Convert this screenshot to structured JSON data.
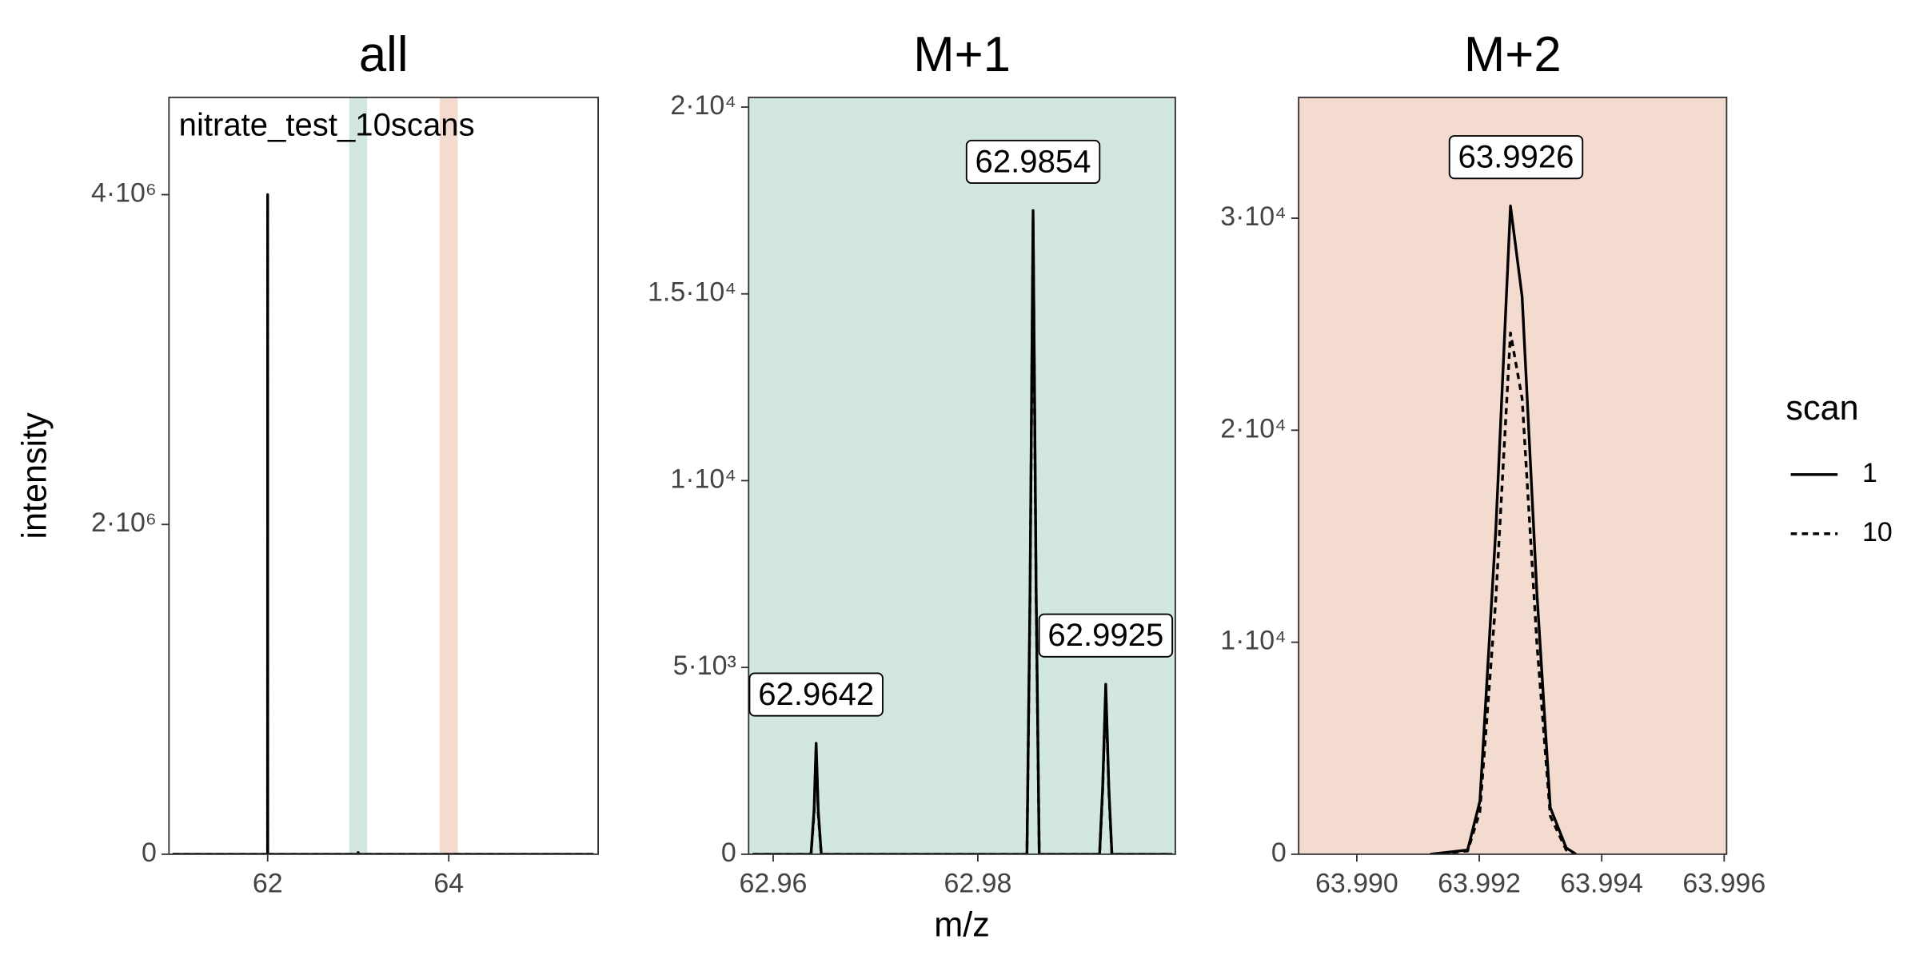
{
  "chart_data": [
    {
      "type": "line",
      "title": "all",
      "annotation": "nitrate_test_10scans",
      "xlim": [
        60.91,
        65.65
      ],
      "xticks": [
        62,
        64
      ],
      "ylim": [
        0,
        4590000
      ],
      "yticks": [
        0,
        {
          "value": 2000000,
          "label": "2·10⁶"
        },
        {
          "value": 4000000,
          "label": "4·10⁶"
        }
      ],
      "highlights": [
        {
          "xmin": 62.9,
          "xmax": 63.1,
          "color": "#d2e8df"
        },
        {
          "xmin": 63.9,
          "xmax": 64.1,
          "color": "#f4dbd0"
        }
      ],
      "series": [
        {
          "name": "1",
          "color": "#000000",
          "linestyle": "solid",
          "x": [
            60.95,
            61.999,
            62.0,
            62.001,
            62.999,
            63.0,
            63.001,
            65.6
          ],
          "values": [
            0,
            0,
            4000000,
            0,
            0,
            10000,
            0,
            0
          ]
        },
        {
          "name": "10",
          "color": "#000000",
          "linestyle": "dashed",
          "x": [
            60.95,
            61.999,
            62.0,
            62.001,
            62.999,
            63.0,
            63.001,
            65.6
          ],
          "values": [
            0,
            0,
            3950000,
            0,
            0,
            9000,
            0,
            0
          ]
        }
      ]
    },
    {
      "type": "line",
      "title": "M+1",
      "background": "#d2e8df",
      "xlim": [
        62.9576,
        62.9993
      ],
      "xticks": [
        62.96,
        62.98
      ],
      "ylim": [
        0,
        20260
      ],
      "yticks": [
        0,
        {
          "value": 5000,
          "label": "5·10³"
        },
        {
          "value": 10000,
          "label": "1·10⁴"
        },
        {
          "value": 15000,
          "label": "1.5·10⁴"
        },
        {
          "value": 20000,
          "label": "2·10⁴"
        }
      ],
      "peaks": [
        {
          "x": 62.9642,
          "y": 2970
        },
        {
          "x": 62.9854,
          "y": 17230
        },
        {
          "x": 62.9925,
          "y": 4550
        }
      ],
      "series": [
        {
          "name": "1",
          "color": "#000000",
          "linestyle": "solid",
          "x": [
            62.958,
            62.9637,
            62.964,
            62.9642,
            62.9644,
            62.9647,
            62.9848,
            62.9851,
            62.9854,
            62.9857,
            62.986,
            62.9919,
            62.9922,
            62.9925,
            62.9928,
            62.9931,
            62.999
          ],
          "values": [
            0,
            0,
            1200,
            2970,
            1200,
            0,
            0,
            7000,
            17230,
            7000,
            0,
            0,
            1800,
            4550,
            1800,
            0,
            0
          ]
        },
        {
          "name": "10",
          "color": "#000000",
          "linestyle": "dashed",
          "x": [
            62.958,
            62.9637,
            62.964,
            62.9642,
            62.9644,
            62.9647,
            62.9848,
            62.9851,
            62.9854,
            62.9857,
            62.986,
            62.9919,
            62.9922,
            62.9925,
            62.9928,
            62.9931,
            62.999
          ],
          "values": [
            0,
            0,
            1100,
            2900,
            1100,
            0,
            0,
            6800,
            16900,
            6800,
            0,
            0,
            1700,
            4450,
            1700,
            0,
            0
          ]
        }
      ]
    },
    {
      "type": "line",
      "title": "M+2",
      "background": "#f4dbd0",
      "xlim": [
        63.98905,
        63.99604
      ],
      "xticks": [
        {
          "value": 63.99,
          "label": "63.990"
        },
        63.992,
        63.994,
        63.996
      ],
      "ylim": [
        0,
        35700
      ],
      "yticks": [
        0,
        {
          "value": 10000,
          "label": "1·10⁴"
        },
        {
          "value": 20000,
          "label": "2·10⁴"
        },
        {
          "value": 30000,
          "label": "3·10⁴"
        }
      ],
      "peaks": [
        {
          "x": 63.9926,
          "y": 30580
        }
      ],
      "series": [
        {
          "name": "1",
          "color": "#000000",
          "linestyle": "solid",
          "x": [
            63.9912,
            63.99181,
            63.99201,
            63.99227,
            63.99251,
            63.9927,
            63.99294,
            63.99316,
            63.99342,
            63.99358
          ],
          "values": [
            0,
            200,
            2500,
            15300,
            30580,
            26300,
            12400,
            2200,
            300,
            0
          ]
        },
        {
          "name": "10",
          "color": "#000000",
          "linestyle": "dashed",
          "x": [
            63.9912,
            63.99181,
            63.99201,
            63.99227,
            63.99251,
            63.9927,
            63.99294,
            63.99316,
            63.99342,
            63.99358
          ],
          "values": [
            0,
            150,
            2000,
            12000,
            24590,
            21500,
            10000,
            1800,
            200,
            0
          ]
        }
      ]
    }
  ],
  "x_label": "m/z",
  "y_label": "intensity",
  "legend": {
    "title": "scan"
  }
}
